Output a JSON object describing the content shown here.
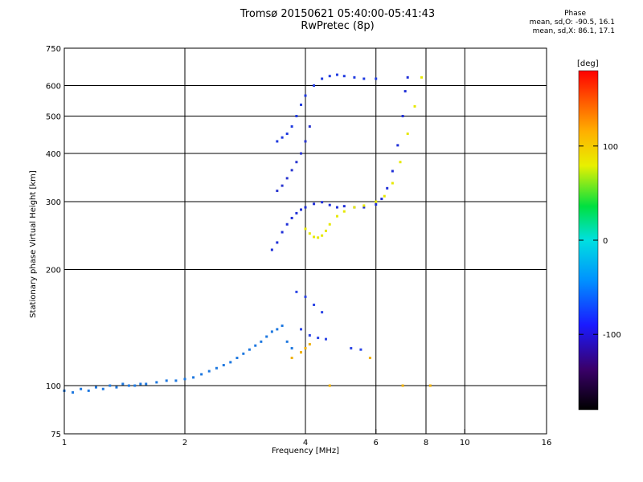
{
  "header": {
    "title": "Tromsø 20150621 05:40:00-05:41:43",
    "subtitle": "RwPretec (8p)"
  },
  "phase_stats": {
    "heading": "Phase",
    "o_line": "mean, sd,O: -90.5, 16.1",
    "x_line": "mean, sd,X:  86.1, 17.1"
  },
  "colorbar": {
    "unit_label": "[deg]",
    "tick_labels": [
      "100",
      "0",
      "-100"
    ],
    "tick_values": [
      100,
      0,
      -100
    ],
    "range": [
      -180,
      180
    ]
  },
  "chart_data": {
    "type": "scatter",
    "xlabel": "Frequency [MHz]",
    "ylabel": "Stationary phase Virtual Height [km]",
    "x_scale": "log",
    "y_scale": "log",
    "xlim": [
      1,
      16
    ],
    "ylim": [
      75,
      750
    ],
    "x_ticks": [
      1,
      2,
      4,
      6,
      8,
      10,
      16
    ],
    "x_tick_labels": [
      "1",
      "2",
      "4",
      "6",
      "8",
      "10",
      "16"
    ],
    "y_ticks": [
      75,
      100,
      200,
      300,
      400,
      500,
      600,
      750
    ],
    "y_tick_labels": [
      "75",
      "100",
      "200",
      "300",
      "400",
      "500",
      "600",
      "750"
    ],
    "x_gridlines": [
      2,
      4,
      6,
      8,
      10
    ],
    "y_gridlines": [
      100,
      200,
      300,
      400,
      500,
      600
    ],
    "grid": true,
    "series": [
      {
        "points": [
          [
            1.0,
            97
          ],
          [
            1.05,
            96
          ],
          [
            1.1,
            98
          ],
          [
            1.15,
            97
          ],
          [
            1.2,
            99
          ],
          [
            1.25,
            98
          ],
          [
            1.3,
            100
          ],
          [
            1.35,
            99
          ],
          [
            1.4,
            101
          ],
          [
            1.45,
            100
          ],
          [
            1.5,
            100
          ],
          [
            1.55,
            101
          ],
          [
            1.6,
            101
          ],
          [
            1.7,
            102
          ],
          [
            1.8,
            103
          ],
          [
            1.9,
            103
          ],
          [
            2.0,
            104
          ],
          [
            2.1,
            105
          ],
          [
            2.2,
            107
          ],
          [
            2.3,
            109
          ],
          [
            2.4,
            111
          ],
          [
            2.5,
            113
          ],
          [
            2.6,
            115
          ],
          [
            2.7,
            118
          ],
          [
            2.8,
            121
          ],
          [
            2.9,
            124
          ],
          [
            3.0,
            127
          ],
          [
            3.1,
            130
          ],
          [
            3.2,
            134
          ],
          [
            3.3,
            138
          ],
          [
            3.4,
            140
          ],
          [
            3.5,
            143
          ],
          [
            3.6,
            130
          ],
          [
            3.7,
            125
          ]
        ]
      },
      {
        "points": [
          [
            3.3,
            225
          ],
          [
            3.4,
            235
          ],
          [
            3.5,
            250
          ],
          [
            3.6,
            262
          ],
          [
            3.7,
            272
          ],
          [
            3.8,
            280
          ],
          [
            3.9,
            286
          ],
          [
            4.0,
            290
          ],
          [
            4.2,
            296
          ],
          [
            4.4,
            299
          ],
          [
            4.6,
            294
          ],
          [
            4.8,
            290
          ],
          [
            5.0,
            292
          ],
          [
            5.3,
            290
          ],
          [
            5.6,
            290
          ],
          [
            6.0,
            295
          ],
          [
            6.2,
            305
          ],
          [
            6.4,
            325
          ],
          [
            6.6,
            360
          ],
          [
            6.8,
            420
          ],
          [
            7.0,
            500
          ],
          [
            7.1,
            580
          ],
          [
            7.2,
            630
          ]
        ]
      },
      {
        "points": [
          [
            3.4,
            320
          ],
          [
            3.5,
            330
          ],
          [
            3.6,
            345
          ],
          [
            3.7,
            362
          ],
          [
            3.8,
            380
          ],
          [
            3.9,
            400
          ],
          [
            4.0,
            430
          ],
          [
            4.1,
            470
          ]
        ]
      },
      {
        "points": [
          [
            3.4,
            430
          ],
          [
            3.5,
            440
          ],
          [
            3.6,
            450
          ],
          [
            3.7,
            470
          ],
          [
            3.8,
            500
          ],
          [
            3.9,
            535
          ],
          [
            4.0,
            565
          ],
          [
            4.2,
            600
          ],
          [
            4.4,
            625
          ],
          [
            4.6,
            635
          ],
          [
            4.8,
            640
          ],
          [
            5.0,
            635
          ],
          [
            5.3,
            630
          ],
          [
            5.6,
            625
          ],
          [
            6.0,
            625
          ]
        ]
      },
      {
        "points": [
          [
            4.0,
            255
          ],
          [
            4.1,
            248
          ],
          [
            4.2,
            243
          ],
          [
            4.3,
            242
          ],
          [
            4.4,
            245
          ],
          [
            4.5,
            252
          ],
          [
            4.6,
            262
          ],
          [
            4.8,
            275
          ],
          [
            5.0,
            283
          ],
          [
            5.3,
            290
          ],
          [
            5.6,
            293
          ],
          [
            6.0,
            300
          ],
          [
            6.3,
            310
          ],
          [
            6.6,
            335
          ],
          [
            6.9,
            380
          ],
          [
            7.2,
            450
          ],
          [
            7.5,
            530
          ],
          [
            7.8,
            630
          ]
        ]
      },
      {
        "points": [
          [
            3.8,
            175
          ],
          [
            4.0,
            170
          ],
          [
            4.2,
            162
          ],
          [
            4.4,
            155
          ],
          [
            3.9,
            140
          ],
          [
            4.1,
            135
          ],
          [
            4.3,
            133
          ],
          [
            4.5,
            132
          ],
          [
            5.2,
            125
          ],
          [
            5.5,
            124
          ]
        ]
      },
      {
        "points": [
          [
            3.7,
            118
          ],
          [
            3.9,
            122
          ],
          [
            4.0,
            125
          ],
          [
            4.1,
            128
          ],
          [
            5.8,
            118
          ],
          [
            4.6,
            100
          ],
          [
            7.0,
            100
          ],
          [
            8.2,
            100
          ]
        ]
      }
    ]
  }
}
